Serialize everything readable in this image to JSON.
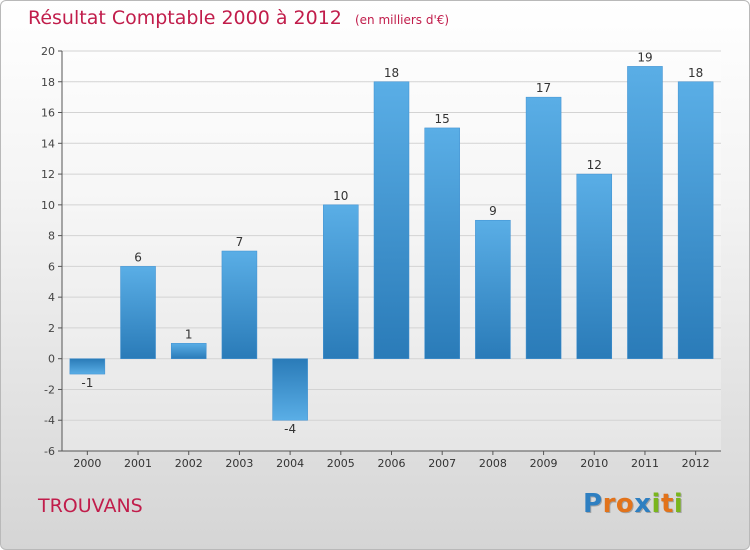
{
  "title": "Résultat Comptable 2000 à 2012",
  "unit_note": "(en milliers d'€)",
  "city": "TROUVANS",
  "logo": {
    "text": "Proxiti",
    "letters": [
      {
        "char": "P",
        "color": "#2e7fc1"
      },
      {
        "char": "r",
        "color": "#e2731b"
      },
      {
        "char": "o",
        "color": "#e2731b"
      },
      {
        "char": "x",
        "color": "#2e7fc1"
      },
      {
        "char": "i",
        "color": "#7ab51d"
      },
      {
        "char": "t",
        "color": "#e2731b"
      },
      {
        "char": "i",
        "color": "#7ab51d"
      }
    ]
  },
  "colors": {
    "title": "#c11d4b",
    "bar_light": "#5aaee6",
    "bar_dark": "#2a7bb8",
    "grid": "#d3d3d3",
    "axis": "#555555"
  },
  "chart_data": {
    "type": "bar",
    "title": "Résultat Comptable 2000 à 2012",
    "xlabel": "",
    "ylabel": "(en milliers d'€)",
    "categories": [
      "2000",
      "2001",
      "2002",
      "2003",
      "2004",
      "2005",
      "2006",
      "2007",
      "2008",
      "2009",
      "2010",
      "2011",
      "2012"
    ],
    "values": [
      -1,
      6,
      1,
      7,
      -4,
      10,
      18,
      15,
      9,
      17,
      12,
      19,
      18
    ],
    "ylim": [
      -6,
      20
    ],
    "yticks": [
      -6,
      -4,
      -2,
      0,
      2,
      4,
      6,
      8,
      10,
      12,
      14,
      16,
      18,
      20
    ],
    "grid": true
  }
}
